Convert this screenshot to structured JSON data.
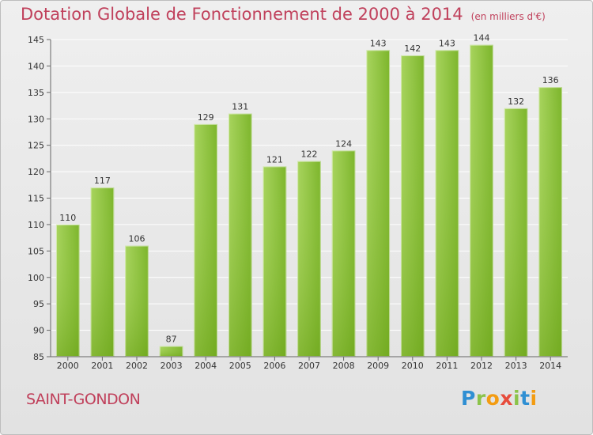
{
  "chart_data": {
    "type": "bar",
    "title": "Dotation Globale de Fonctionnement de 2000 à 2014",
    "subtitle": "(en milliers d'€)",
    "categories": [
      "2000",
      "2001",
      "2002",
      "2003",
      "2004",
      "2005",
      "2006",
      "2007",
      "2008",
      "2009",
      "2010",
      "2011",
      "2012",
      "2013",
      "2014"
    ],
    "values": [
      110,
      117,
      106,
      87,
      129,
      131,
      121,
      122,
      124,
      143,
      142,
      143,
      144,
      132,
      136
    ],
    "ylim": [
      85,
      145
    ],
    "yticks": [
      85,
      90,
      95,
      100,
      105,
      110,
      115,
      120,
      125,
      130,
      135,
      140,
      145
    ],
    "grid": true,
    "xlabel": "",
    "ylabel": "",
    "colors": {
      "bar_light": "#a8d45e",
      "bar_dark": "#6aa217",
      "title": "#c0405b"
    }
  },
  "footer": {
    "commune": "SAINT-GONDON",
    "logo_text": "Proxiti"
  }
}
